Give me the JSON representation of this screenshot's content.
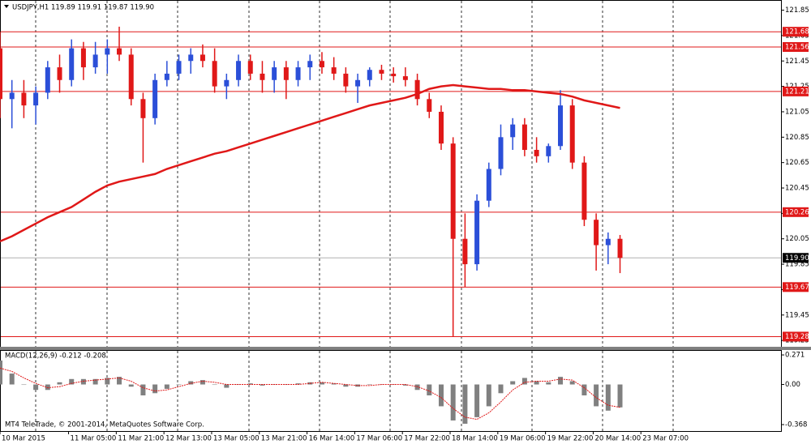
{
  "chart_data": [
    {
      "type": "candlestick",
      "title": "USDJPY,H1  119.89 119.91 119.87 119.90",
      "x": [
        0,
        4,
        8,
        12,
        16,
        20,
        24,
        28,
        32,
        36,
        40,
        44,
        48,
        52,
        56,
        60,
        64,
        68,
        72,
        76,
        80,
        84,
        88,
        92,
        96,
        100,
        104,
        108,
        112,
        116,
        120,
        124,
        128,
        132,
        136,
        140,
        144,
        148,
        152,
        156,
        160,
        164,
        168,
        172,
        176,
        180,
        184,
        188,
        192,
        196,
        200,
        204,
        208
      ],
      "open": [
        121.55,
        121.15,
        121.2,
        121.1,
        121.2,
        121.4,
        121.3,
        121.55,
        121.4,
        121.5,
        121.55,
        121.5,
        121.15,
        121.0,
        121.3,
        121.35,
        121.45,
        121.5,
        121.45,
        121.25,
        121.3,
        121.45,
        121.35,
        121.3,
        121.4,
        121.3,
        121.4,
        121.45,
        121.4,
        121.35,
        121.25,
        121.3,
        121.38,
        121.35,
        121.33,
        121.3,
        121.15,
        121.05,
        120.8,
        120.05,
        119.85,
        120.35,
        120.6,
        120.85,
        120.95,
        120.75,
        120.7,
        120.78,
        121.1,
        120.65,
        120.2,
        120.0,
        120.05
      ],
      "high": [
        121.68,
        121.3,
        121.3,
        121.25,
        121.45,
        121.5,
        121.62,
        121.6,
        121.6,
        121.62,
        121.72,
        121.55,
        121.2,
        121.35,
        121.45,
        121.5,
        121.55,
        121.58,
        121.55,
        121.35,
        121.5,
        121.5,
        121.45,
        121.45,
        121.45,
        121.45,
        121.5,
        121.52,
        121.48,
        121.4,
        121.35,
        121.4,
        121.42,
        121.4,
        121.4,
        121.35,
        121.2,
        121.1,
        120.85,
        120.25,
        120.4,
        120.65,
        120.95,
        121.0,
        121.0,
        120.85,
        120.8,
        121.22,
        121.15,
        120.7,
        120.25,
        120.1,
        120.08
      ],
      "low": [
        121.0,
        120.92,
        121.0,
        120.95,
        121.15,
        121.2,
        121.25,
        121.3,
        121.35,
        121.35,
        121.45,
        121.1,
        120.65,
        120.95,
        121.25,
        121.3,
        121.35,
        121.4,
        121.2,
        121.15,
        121.25,
        121.3,
        121.2,
        121.2,
        121.15,
        121.25,
        121.3,
        121.35,
        121.3,
        121.2,
        121.12,
        121.25,
        121.3,
        121.28,
        121.25,
        121.1,
        121.0,
        120.75,
        119.28,
        119.67,
        119.8,
        120.3,
        120.55,
        120.75,
        120.7,
        120.65,
        120.65,
        120.75,
        120.6,
        120.15,
        119.8,
        119.85,
        119.78
      ],
      "close": [
        121.15,
        121.2,
        121.1,
        121.2,
        121.4,
        121.3,
        121.55,
        121.4,
        121.5,
        121.55,
        121.5,
        121.15,
        121.0,
        121.3,
        121.35,
        121.45,
        121.5,
        121.45,
        121.25,
        121.3,
        121.45,
        121.35,
        121.3,
        121.4,
        121.3,
        121.4,
        121.45,
        121.4,
        121.35,
        121.25,
        121.3,
        121.38,
        121.35,
        121.33,
        121.3,
        121.15,
        121.05,
        120.8,
        120.05,
        119.85,
        120.35,
        120.6,
        120.85,
        120.95,
        120.75,
        120.7,
        120.78,
        121.1,
        120.65,
        120.2,
        120.0,
        120.05,
        119.9
      ],
      "up_color": "#2b4fd8",
      "down_color": "#e01818",
      "lines": [
        {
          "color": "#e01818",
          "values": [
            120.03,
            120.07,
            120.12,
            120.17,
            120.22,
            120.26,
            120.3,
            120.36,
            120.42,
            120.47,
            120.5,
            120.52,
            120.54,
            120.56,
            120.6,
            120.63,
            120.66,
            120.69,
            120.72,
            120.74,
            120.77,
            120.8,
            120.83,
            120.86,
            120.89,
            120.92,
            120.95,
            120.98,
            121.01,
            121.04,
            121.07,
            121.1,
            121.12,
            121.14,
            121.16,
            121.19,
            121.23,
            121.25,
            121.26,
            121.25,
            121.24,
            121.23,
            121.23,
            121.22,
            121.22,
            121.21,
            121.2,
            121.19,
            121.17,
            121.14,
            121.12,
            121.1,
            121.08
          ]
        }
      ],
      "levels": [
        121.68,
        121.56,
        121.21,
        120.26,
        119.67,
        119.28
      ],
      "level_color": "#e01818",
      "current_price": {
        "value": 119.9,
        "label": "119.90"
      },
      "xlim": [
        0,
        262
      ],
      "ylim": [
        119.2,
        121.93
      ],
      "yticks": [
        121.85,
        121.65,
        121.45,
        121.25,
        121.05,
        120.85,
        120.65,
        120.45,
        120.25,
        120.05,
        119.85,
        119.65,
        119.45,
        119.25
      ],
      "xticks": [
        {
          "value": 0,
          "label": "10 Mar 2015"
        },
        {
          "value": 23,
          "label": "11 Mar 05:00"
        },
        {
          "value": 39,
          "label": "11 Mar 21:00"
        },
        {
          "value": 55,
          "label": "12 Mar 13:00"
        },
        {
          "value": 71,
          "label": "13 Mar 05:00"
        },
        {
          "value": 87,
          "label": "13 Mar 21:00"
        },
        {
          "value": 103,
          "label": "16 Mar 14:00"
        },
        {
          "value": 119,
          "label": "17 Mar 06:00"
        },
        {
          "value": 135,
          "label": "17 Mar 22:00"
        },
        {
          "value": 151,
          "label": "18 Mar 14:00"
        },
        {
          "value": 167,
          "label": "19 Mar 06:00"
        },
        {
          "value": 183,
          "label": "19 Mar 22:00"
        },
        {
          "value": 199,
          "label": "20 Mar 14:00"
        },
        {
          "value": 215,
          "label": "23 Mar 07:00"
        }
      ]
    },
    {
      "type": "macd",
      "title": "MACD(12,26,9) -0.212 -0.208",
      "footer": "MT4 TeleTrade, © 2001-2014, MetaQuotes Software Corp.",
      "values": [
        0.22,
        0.1,
        0.0,
        -0.05,
        -0.05,
        0.02,
        0.05,
        0.05,
        0.05,
        0.06,
        0.07,
        -0.02,
        -0.1,
        -0.08,
        -0.04,
        0.0,
        0.03,
        0.04,
        0.0,
        -0.03,
        0.0,
        0.01,
        -0.01,
        0.0,
        0.0,
        0.01,
        0.02,
        0.02,
        0.01,
        -0.02,
        -0.02,
        0.0,
        0.0,
        0.0,
        -0.01,
        -0.05,
        -0.1,
        -0.2,
        -0.33,
        -0.36,
        -0.3,
        -0.2,
        -0.08,
        0.03,
        0.06,
        0.03,
        0.02,
        0.07,
        0.03,
        -0.1,
        -0.2,
        -0.24,
        -0.21
      ],
      "signal": [
        0.15,
        0.12,
        0.06,
        0.01,
        -0.03,
        -0.02,
        0.01,
        0.03,
        0.04,
        0.05,
        0.06,
        0.03,
        -0.03,
        -0.06,
        -0.05,
        -0.02,
        0.01,
        0.03,
        0.02,
        0.0,
        0.0,
        0.0,
        0.0,
        0.0,
        0.0,
        0.0,
        0.01,
        0.02,
        0.01,
        0.0,
        -0.01,
        -0.01,
        0.0,
        0.0,
        0.0,
        -0.02,
        -0.06,
        -0.12,
        -0.22,
        -0.3,
        -0.32,
        -0.26,
        -0.16,
        -0.05,
        0.02,
        0.03,
        0.03,
        0.05,
        0.04,
        -0.03,
        -0.12,
        -0.19,
        -0.21
      ],
      "color": "#808080",
      "signal_color": "#e01818",
      "ylim": [
        -0.427,
        0.316
      ],
      "yticks": [
        0.271,
        {
          "value": 0,
          "label": "0.00"
        },
        -0.368
      ]
    }
  ]
}
